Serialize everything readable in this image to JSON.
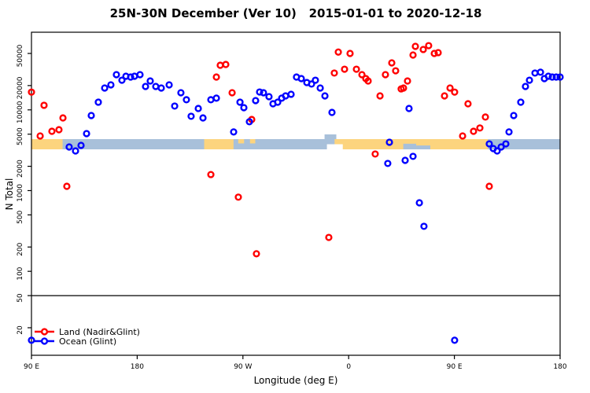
{
  "title": "25N-30N December (Ver 10)   2015-01-01 to 2020-12-18",
  "chart_data": {
    "type": "scatter",
    "title": "25N-30N December (Ver 10)   2015-01-01 to 2020-12-18",
    "xlabel": "Longitude (deg E)",
    "ylabel": "N Total",
    "x_axis": {
      "tick_labels": [
        "90 E",
        "180",
        "90 W",
        "0",
        "90 E",
        "180"
      ],
      "tick_positions_deg": [
        0,
        90,
        180,
        270,
        360,
        450
      ],
      "span_deg": 450,
      "note": "axis runs 90E eastward around the globe to 180, repeating 90E-180"
    },
    "y_axis": {
      "scale": "log",
      "ticks": [
        20,
        50,
        100,
        200,
        500,
        1000,
        2000,
        5000,
        10000,
        20000,
        50000
      ],
      "range": [
        9,
        90000
      ]
    },
    "ref_line_value": 50,
    "grid": false,
    "legend_position": "bottom-left",
    "legend": {
      "items": [
        {
          "label": "Land (Nadir&Glint)",
          "color": "#ff0000"
        },
        {
          "label": "Ocean (Glint)",
          "color": "#0000ff"
        }
      ]
    },
    "map_strip": {
      "band": "25N-30N coastline strip",
      "value_center": 3800,
      "ocean_color": "#a8c0da",
      "land_color": "#fcd47e",
      "land_segments_deg": [
        [
          0,
          26.5
        ],
        [
          147,
          172
        ],
        [
          258,
          388.5
        ]
      ],
      "coast_specks_top_deg": [
        [
          176,
          181
        ],
        [
          186,
          190.5
        ]
      ],
      "ocean_notch_bottom_deg": [
        316.5,
        339.5
      ],
      "shore_notch_white_deg": [
        251.5,
        265
      ],
      "ocean_bump_top_deg": [
        249.5,
        259.5
      ]
    },
    "series": [
      {
        "name": "Land (Nadir&Glint)",
        "color": "#ff0000",
        "points": [
          [
            0,
            16600
          ],
          [
            7.4,
            4750
          ],
          [
            10.7,
            11400
          ],
          [
            17.4,
            5430
          ],
          [
            23.4,
            5680
          ],
          [
            26.8,
            7950
          ],
          [
            30.1,
            1130
          ],
          [
            152.7,
            1580
          ],
          [
            157.4,
            25500
          ],
          [
            160.7,
            35700
          ],
          [
            165.4,
            36500
          ],
          [
            170.8,
            16300
          ],
          [
            176.1,
            830
          ],
          [
            187.5,
            7600
          ],
          [
            191.5,
            165
          ],
          [
            253.1,
            263
          ],
          [
            257.8,
            28600
          ],
          [
            261.2,
            52000
          ],
          [
            266.5,
            31900
          ],
          [
            271.2,
            50000
          ],
          [
            276.6,
            31900
          ],
          [
            281.3,
            27300
          ],
          [
            284.6,
            24400
          ],
          [
            286.6,
            22800
          ],
          [
            292.6,
            2840
          ],
          [
            296.7,
            14900
          ],
          [
            301.3,
            27300
          ],
          [
            306.7,
            38200
          ],
          [
            310,
            30500
          ],
          [
            314.7,
            18200
          ],
          [
            316.7,
            18650
          ],
          [
            320.1,
            22800
          ],
          [
            324.8,
            47800
          ],
          [
            326.8,
            61200
          ],
          [
            333.5,
            56000
          ],
          [
            338.1,
            62500
          ],
          [
            342.9,
            50000
          ],
          [
            346.2,
            51200
          ],
          [
            351.6,
            14900
          ],
          [
            356.3,
            18650
          ],
          [
            360.2,
            16600
          ],
          [
            367,
            4750
          ],
          [
            371.6,
            11900
          ],
          [
            376.3,
            5430
          ],
          [
            381.7,
            5970
          ],
          [
            386.4,
            8150
          ],
          [
            389.7,
            1130
          ]
        ]
      },
      {
        "name": "Ocean (Glint)",
        "color": "#0000ff",
        "points": [
          [
            0,
            14
          ],
          [
            32.1,
            3470
          ],
          [
            37.5,
            3100
          ],
          [
            42.2,
            3630
          ],
          [
            46.9,
            5080
          ],
          [
            50.9,
            8510
          ],
          [
            56.9,
            12450
          ],
          [
            62.3,
            18650
          ],
          [
            67.6,
            20400
          ],
          [
            72.3,
            27300
          ],
          [
            77,
            23300
          ],
          [
            80.4,
            26100
          ],
          [
            84.4,
            25500
          ],
          [
            87.7,
            26100
          ],
          [
            92.4,
            27300
          ],
          [
            97.1,
            19500
          ],
          [
            101.1,
            22800
          ],
          [
            105.8,
            19500
          ],
          [
            110.5,
            18650
          ],
          [
            117.2,
            20400
          ],
          [
            121.9,
            11150
          ],
          [
            127.2,
            16300
          ],
          [
            131.9,
            13350
          ],
          [
            135.9,
            8330
          ],
          [
            142,
            10400
          ],
          [
            146,
            7950
          ],
          [
            152.7,
            13350
          ],
          [
            157.4,
            13980
          ],
          [
            172.1,
            5330
          ],
          [
            177.5,
            12450
          ],
          [
            180.8,
            10650
          ],
          [
            185.5,
            7130
          ],
          [
            190.8,
            13030
          ],
          [
            194.2,
            16650
          ],
          [
            197.5,
            16300
          ],
          [
            202.2,
            14580
          ],
          [
            205.6,
            11900
          ],
          [
            209.6,
            12450
          ],
          [
            213,
            13980
          ],
          [
            216.3,
            14900
          ],
          [
            221,
            15600
          ],
          [
            225.6,
            25500
          ],
          [
            229.7,
            24400
          ],
          [
            234.4,
            21800
          ],
          [
            238.4,
            20900
          ],
          [
            241.7,
            23300
          ],
          [
            245.8,
            18650
          ],
          [
            249.8,
            14900
          ],
          [
            255.8,
            9300
          ],
          [
            303.3,
            2170
          ],
          [
            304.7,
            3970
          ],
          [
            318.1,
            2370
          ],
          [
            321.4,
            10400
          ],
          [
            324.8,
            2655
          ],
          [
            330.2,
            706
          ],
          [
            334.1,
            361
          ],
          [
            360.2,
            14
          ],
          [
            389.7,
            3790
          ],
          [
            393.1,
            3320
          ],
          [
            396.4,
            3100
          ],
          [
            399.8,
            3470
          ],
          [
            403.8,
            3790
          ],
          [
            406.5,
            5330
          ],
          [
            410.5,
            8510
          ],
          [
            416.5,
            12450
          ],
          [
            420.5,
            19500
          ],
          [
            423.9,
            23300
          ],
          [
            428.6,
            28600
          ],
          [
            433.3,
            29300
          ],
          [
            436.6,
            24400
          ],
          [
            440,
            26100
          ],
          [
            443.3,
            25500
          ],
          [
            446.7,
            25500
          ],
          [
            450,
            25500
          ]
        ]
      }
    ]
  }
}
